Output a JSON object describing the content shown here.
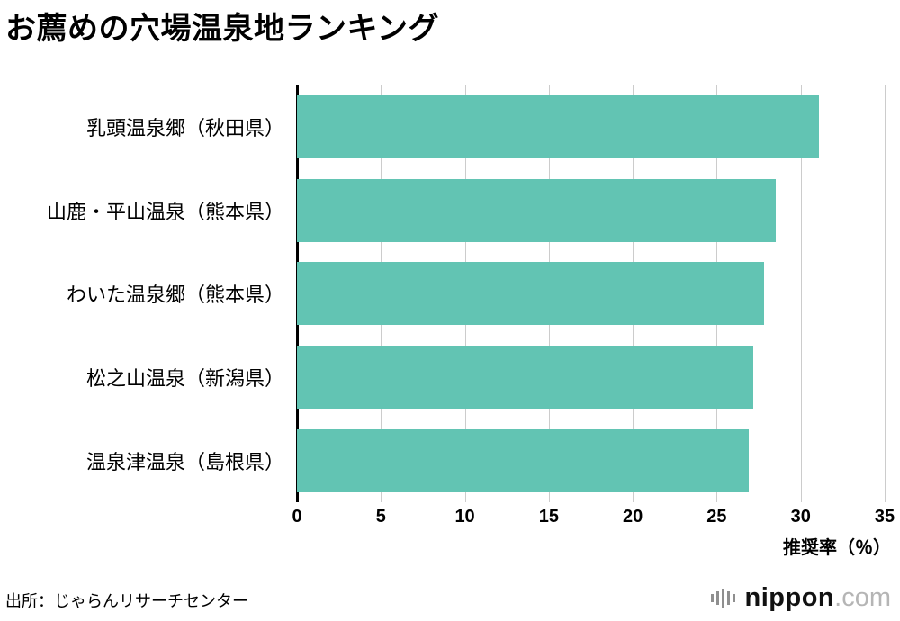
{
  "title": "お薦めの穴場温泉地ランキング",
  "source": "出所：じゃらんリサーチセンター",
  "logo": {
    "name": "nippon",
    "tld": ".com"
  },
  "chart_data": {
    "type": "bar",
    "orientation": "horizontal",
    "title": "お薦めの穴場温泉地ランキング",
    "categories": [
      "乳頭温泉郷（秋田県）",
      "山鹿・平山温泉（熊本県）",
      "わいた温泉郷（熊本県）",
      "松之山温泉（新潟県）",
      "温泉津温泉（島根県）"
    ],
    "values": [
      31.1,
      28.5,
      27.8,
      27.2,
      26.9
    ],
    "xlabel": "推奨率（％）",
    "ylabel": "",
    "xlim": [
      0,
      35
    ],
    "xticks": [
      0,
      5,
      10,
      15,
      20,
      25,
      30,
      35
    ],
    "bar_color": "#62c4b3",
    "grid": true,
    "legend": false
  }
}
